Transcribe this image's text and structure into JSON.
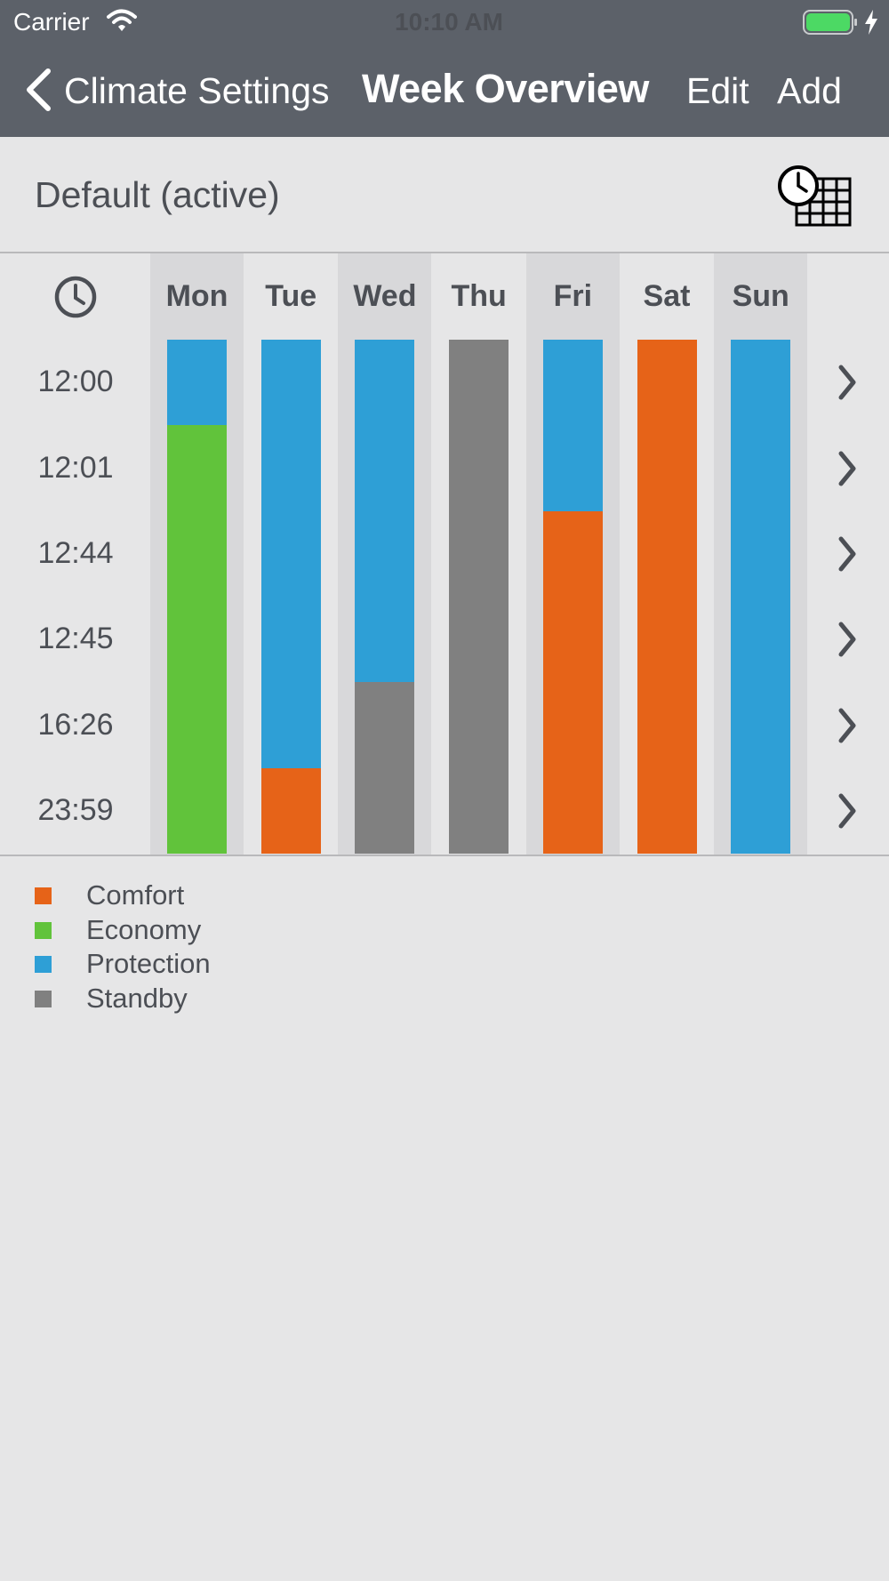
{
  "status_bar": {
    "carrier": "Carrier",
    "time": "10:10 AM"
  },
  "nav": {
    "back_label": "Climate Settings",
    "title": "Week Overview",
    "edit": "Edit",
    "add": "Add"
  },
  "profile": {
    "name": "Default (active)"
  },
  "colors": {
    "Comfort": "#e66318",
    "Economy": "#61c33b",
    "Protection": "#2e9fd6",
    "Standby": "#808080"
  },
  "times": [
    "12:00",
    "12:01",
    "12:44",
    "12:45",
    "16:26",
    "23:59"
  ],
  "days": [
    {
      "label": "Mon",
      "segments": [
        "Protection",
        "Economy",
        "Economy",
        "Economy",
        "Economy",
        "Economy"
      ]
    },
    {
      "label": "Tue",
      "segments": [
        "Protection",
        "Protection",
        "Protection",
        "Protection",
        "Protection",
        "Comfort"
      ]
    },
    {
      "label": "Wed",
      "segments": [
        "Protection",
        "Protection",
        "Protection",
        "Protection",
        "Standby",
        "Standby"
      ]
    },
    {
      "label": "Thu",
      "segments": [
        "Standby",
        "Standby",
        "Standby",
        "Standby",
        "Standby",
        "Standby"
      ]
    },
    {
      "label": "Fri",
      "segments": [
        "Protection",
        "Protection",
        "Comfort",
        "Comfort",
        "Comfort",
        "Comfort"
      ]
    },
    {
      "label": "Sat",
      "segments": [
        "Comfort",
        "Comfort",
        "Comfort",
        "Comfort",
        "Comfort",
        "Comfort"
      ]
    },
    {
      "label": "Sun",
      "segments": [
        "Protection",
        "Protection",
        "Protection",
        "Protection",
        "Protection",
        "Protection"
      ]
    }
  ],
  "legend": [
    {
      "label": "Comfort",
      "color": "#e66318"
    },
    {
      "label": "Economy",
      "color": "#61c33b"
    },
    {
      "label": "Protection",
      "color": "#2e9fd6"
    },
    {
      "label": "Standby",
      "color": "#808080"
    }
  ]
}
